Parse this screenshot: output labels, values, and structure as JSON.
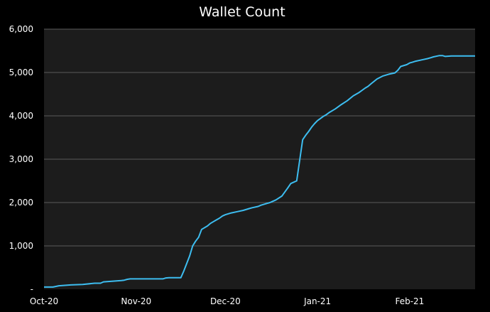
{
  "chart_data": {
    "type": "line",
    "title": "Wallet Count",
    "xlabel": "",
    "ylabel": "",
    "x_ticks": [
      "Oct-20",
      "Nov-20",
      "Dec-20",
      "Jan-21",
      "Feb-21"
    ],
    "x_tick_dates": [
      "2020-10-01",
      "2020-11-01",
      "2020-12-01",
      "2021-01-01",
      "2021-02-01"
    ],
    "y_ticks": [
      "-",
      "1,000",
      "2,000",
      "3,000",
      "4,000",
      "5,000",
      "6,000"
    ],
    "ylim": [
      0,
      6000
    ],
    "xlim": [
      "2020-10-01",
      "2021-02-23"
    ],
    "grid": true,
    "background_color": "#000000",
    "plot_background_color": "#1c1c1c",
    "gridline_color": "#5a5a5a",
    "series": [
      {
        "color": "#3dbdf0",
        "x": [
          "2020-10-01",
          "2020-10-04",
          "2020-10-06",
          "2020-10-10",
          "2020-10-14",
          "2020-10-18",
          "2020-10-20",
          "2020-10-21",
          "2020-10-27",
          "2020-10-28",
          "2020-10-29",
          "2020-10-30",
          "2020-10-31",
          "2020-11-01",
          "2020-11-10",
          "2020-11-11",
          "2020-11-12",
          "2020-11-16",
          "2020-11-17",
          "2020-11-19",
          "2020-11-20",
          "2020-11-21",
          "2020-11-22",
          "2020-11-23",
          "2020-11-25",
          "2020-11-26",
          "2020-11-27",
          "2020-11-28",
          "2020-11-29",
          "2020-11-30",
          "2020-12-01",
          "2020-12-03",
          "2020-12-05",
          "2020-12-07",
          "2020-12-09",
          "2020-12-10",
          "2020-12-12",
          "2020-12-13",
          "2020-12-15",
          "2020-12-16",
          "2020-12-18",
          "2020-12-20",
          "2020-12-22",
          "2020-12-23",
          "2020-12-25",
          "2020-12-27",
          "2020-12-28",
          "2020-12-29",
          "2020-12-30",
          "2020-12-31",
          "2021-01-01",
          "2021-01-02",
          "2021-01-03",
          "2021-01-04",
          "2021-01-05",
          "2021-01-07",
          "2021-01-09",
          "2021-01-11",
          "2021-01-13",
          "2021-01-15",
          "2021-01-17",
          "2021-01-18",
          "2021-01-19",
          "2021-01-21",
          "2021-01-23",
          "2021-01-25",
          "2021-01-27",
          "2021-01-28",
          "2021-01-29",
          "2021-01-31",
          "2021-02-01",
          "2021-02-02",
          "2021-02-03",
          "2021-02-05",
          "2021-02-07",
          "2021-02-08",
          "2021-02-09",
          "2021-02-11",
          "2021-02-12",
          "2021-02-13",
          "2021-02-15",
          "2021-02-17",
          "2021-02-20",
          "2021-02-22",
          "2021-02-23"
        ],
        "y": [
          50,
          50,
          80,
          100,
          110,
          140,
          140,
          170,
          200,
          210,
          230,
          240,
          240,
          240,
          240,
          260,
          265,
          265,
          420,
          770,
          1000,
          1110,
          1200,
          1380,
          1460,
          1520,
          1560,
          1600,
          1640,
          1690,
          1720,
          1760,
          1790,
          1820,
          1860,
          1880,
          1910,
          1940,
          1980,
          2000,
          2060,
          2150,
          2340,
          2440,
          2500,
          3450,
          3550,
          3640,
          3740,
          3820,
          3890,
          3940,
          3990,
          4030,
          4080,
          4160,
          4260,
          4350,
          4460,
          4540,
          4640,
          4680,
          4740,
          4850,
          4920,
          4960,
          4990,
          5050,
          5140,
          5180,
          5220,
          5240,
          5260,
          5290,
          5320,
          5340,
          5360,
          5390,
          5390,
          5370,
          5380,
          5380,
          5380,
          5380,
          5380
        ]
      }
    ]
  }
}
